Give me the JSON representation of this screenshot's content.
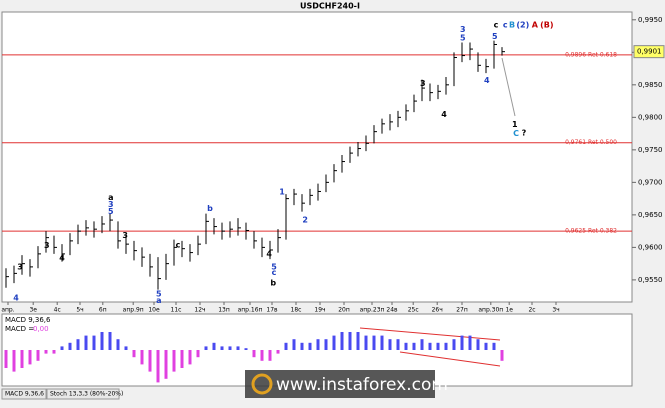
{
  "chart_data": [
    {
      "type": "ohlc",
      "title": "USDCHF240-I",
      "color": "#000000",
      "level_color": "#e03030",
      "xlim": [
        -0.5,
        78.25
      ],
      "ylim": [
        0.9516,
        0.9962
      ],
      "yticks": [
        {
          "value": 0.955,
          "label": "0,9550"
        },
        {
          "value": 0.96,
          "label": "0,9600"
        },
        {
          "value": 0.965,
          "label": "0,9650"
        },
        {
          "value": 0.97,
          "label": "0,9700"
        },
        {
          "value": 0.975,
          "label": "0,9750"
        },
        {
          "value": 0.98,
          "label": "0,9800"
        },
        {
          "value": 0.985,
          "label": "0,9850"
        },
        {
          "value": 0.99,
          "label": "0,9900"
        },
        {
          "value": 0.995,
          "label": "0,9950"
        }
      ],
      "xticks": [
        {
          "value": 0.25,
          "label": "апр."
        },
        {
          "value": 3.4,
          "label": "3е"
        },
        {
          "value": 6.4,
          "label": "4с"
        },
        {
          "value": 9.25,
          "label": "5ч"
        },
        {
          "value": 12.1,
          "label": "6п"
        },
        {
          "value": 15.9,
          "label": "апр.9п"
        },
        {
          "value": 18.5,
          "label": "10е"
        },
        {
          "value": 21.25,
          "label": "11с"
        },
        {
          "value": 24.25,
          "label": "12ч"
        },
        {
          "value": 27.25,
          "label": "13п"
        },
        {
          "value": 30.5,
          "label": "апр.16п"
        },
        {
          "value": 33.25,
          "label": "17в"
        },
        {
          "value": 36.25,
          "label": "18с"
        },
        {
          "value": 39.25,
          "label": "19ч"
        },
        {
          "value": 42.25,
          "label": "20п"
        },
        {
          "value": 45.75,
          "label": "апр.23п"
        },
        {
          "value": 48.25,
          "label": "24в"
        },
        {
          "value": 50.9,
          "label": "25с"
        },
        {
          "value": 53.9,
          "label": "26ч"
        },
        {
          "value": 57,
          "label": "27п"
        },
        {
          "value": 60.6,
          "label": "апр.30п"
        },
        {
          "value": 62.9,
          "label": "1е"
        },
        {
          "value": 65.75,
          "label": "2с"
        },
        {
          "value": 68.75,
          "label": "3ч"
        }
      ],
      "high": [
        0.9568,
        0.9572,
        0.9588,
        0.9582,
        0.9602,
        0.9625,
        0.9618,
        0.9605,
        0.9622,
        0.9635,
        0.9642,
        0.964,
        0.9648,
        0.9652,
        0.964,
        0.9618,
        0.961,
        0.96,
        0.959,
        0.9585,
        0.959,
        0.9612,
        0.961,
        0.9605,
        0.9618,
        0.9652,
        0.9645,
        0.9638,
        0.964,
        0.9645,
        0.9638,
        0.9625,
        0.9615,
        0.961,
        0.9628,
        0.9682,
        0.969,
        0.9682,
        0.969,
        0.9698,
        0.9712,
        0.9728,
        0.9742,
        0.9755,
        0.9762,
        0.9772,
        0.9788,
        0.9798,
        0.9805,
        0.981,
        0.982,
        0.9835,
        0.9858,
        0.9852,
        0.985,
        0.9862,
        0.99,
        0.9915,
        0.9915,
        0.99,
        0.989,
        0.9918,
        0.9908
      ],
      "low": [
        0.9538,
        0.9545,
        0.9558,
        0.9555,
        0.9568,
        0.9592,
        0.959,
        0.9578,
        0.9588,
        0.9605,
        0.9618,
        0.9615,
        0.9622,
        0.9625,
        0.9598,
        0.959,
        0.958,
        0.957,
        0.9555,
        0.9535,
        0.955,
        0.9572,
        0.9585,
        0.9578,
        0.9588,
        0.9605,
        0.962,
        0.9612,
        0.9615,
        0.9618,
        0.9612,
        0.9598,
        0.9585,
        0.9582,
        0.9592,
        0.9612,
        0.9665,
        0.9655,
        0.9665,
        0.9672,
        0.9685,
        0.97,
        0.9715,
        0.973,
        0.974,
        0.9748,
        0.976,
        0.9775,
        0.978,
        0.9785,
        0.9795,
        0.9808,
        0.9825,
        0.9825,
        0.9828,
        0.9835,
        0.9848,
        0.9885,
        0.9888,
        0.987,
        0.9868,
        0.9875,
        0.9895
      ],
      "close": [
        0.9555,
        0.956,
        0.9575,
        0.957,
        0.959,
        0.9615,
        0.96,
        0.959,
        0.961,
        0.9625,
        0.963,
        0.9628,
        0.9636,
        0.9642,
        0.961,
        0.9605,
        0.9595,
        0.9585,
        0.957,
        0.9552,
        0.9575,
        0.96,
        0.9598,
        0.9592,
        0.9605,
        0.964,
        0.9632,
        0.9625,
        0.9628,
        0.963,
        0.9626,
        0.961,
        0.96,
        0.9596,
        0.9615,
        0.9675,
        0.9682,
        0.9668,
        0.968,
        0.9686,
        0.97,
        0.9718,
        0.9732,
        0.9745,
        0.9752,
        0.976,
        0.9778,
        0.979,
        0.9793,
        0.98,
        0.981,
        0.9825,
        0.9845,
        0.9838,
        0.984,
        0.985,
        0.9892,
        0.9895,
        0.9905,
        0.988,
        0.9878,
        0.9912,
        0.9901
      ],
      "levels": [
        {
          "value": 0.9896,
          "label": "0,9896 Ret 0.618"
        },
        {
          "value": 0.9761,
          "label": "0,9761 Ret 0.500"
        },
        {
          "value": 0.9625,
          "label": "0,9625 Ret 0.382"
        }
      ],
      "last_price": {
        "value": 0.9901,
        "label": "0,9901"
      },
      "annotations": [
        {
          "text": "3",
          "x": 1.75,
          "y": 0.957,
          "color": "#000000"
        },
        {
          "text": "4",
          "x": 1.25,
          "y": 0.9522,
          "color": "#2040c0"
        },
        {
          "text": "3",
          "x": 5.1,
          "y": 0.9603,
          "color": "#000000"
        },
        {
          "text": "4",
          "x": 7,
          "y": 0.9584,
          "color": "#000000"
        },
        {
          "text": "a",
          "x": 13.1,
          "y": 0.9677,
          "color": "#000000"
        },
        {
          "text": "3",
          "x": 13.1,
          "y": 0.9666,
          "color": "#2040c0"
        },
        {
          "text": "5",
          "x": 13.1,
          "y": 0.9655,
          "color": "#2040c0"
        },
        {
          "text": "3",
          "x": 14.9,
          "y": 0.9618,
          "color": "#000000"
        },
        {
          "text": "5",
          "x": 19.1,
          "y": 0.9528,
          "color": "#2040c0"
        },
        {
          "text": "a",
          "x": 19.1,
          "y": 0.9518,
          "color": "#2040c0"
        },
        {
          "text": "c",
          "x": 21.5,
          "y": 0.9604,
          "color": "#000000"
        },
        {
          "text": "b",
          "x": 25.5,
          "y": 0.966,
          "color": "#2040c0"
        },
        {
          "text": "4",
          "x": 32.9,
          "y": 0.959,
          "color": "#000000"
        },
        {
          "text": "5",
          "x": 33.5,
          "y": 0.957,
          "color": "#2040c0"
        },
        {
          "text": "c",
          "x": 33.5,
          "y": 0.9561,
          "color": "#2040c0"
        },
        {
          "text": "b",
          "x": 33.4,
          "y": 0.9545,
          "color": "#000000"
        },
        {
          "text": "1",
          "x": 34.5,
          "y": 0.9685,
          "color": "#2040c0"
        },
        {
          "text": "2",
          "x": 37.4,
          "y": 0.9642,
          "color": "#2040c0"
        },
        {
          "text": "3",
          "x": 52.1,
          "y": 0.9852,
          "color": "#000000"
        },
        {
          "text": "4",
          "x": 54.75,
          "y": 0.9804,
          "color": "#000000"
        },
        {
          "text": "3",
          "x": 57.1,
          "y": 0.9935,
          "color": "#2040c0"
        },
        {
          "text": "5",
          "x": 57.1,
          "y": 0.9922,
          "color": "#2040c0"
        },
        {
          "text": "4",
          "x": 60.1,
          "y": 0.9857,
          "color": "#2040c0"
        },
        {
          "text": "5",
          "x": 61.1,
          "y": 0.9924,
          "color": "#2040c0"
        },
        {
          "text": "c",
          "x": 61.25,
          "y": 0.9942,
          "color": "#000000"
        },
        {
          "text": "c",
          "x": 62.4,
          "y": 0.9942,
          "color": "#2040c0"
        },
        {
          "text": "B",
          "x": 63.25,
          "y": 0.9942,
          "color": "#2090d0"
        },
        {
          "text": "(2)",
          "x": 64.6,
          "y": 0.9942,
          "color": "#2040c0"
        },
        {
          "text": "A",
          "x": 66.1,
          "y": 0.9942,
          "color": "#c00000"
        },
        {
          "text": "(B)",
          "x": 67.6,
          "y": 0.9942,
          "color": "#c00000"
        },
        {
          "text": "1",
          "x": 63.6,
          "y": 0.9789,
          "color": "#000000"
        },
        {
          "text": "C",
          "x": 63.75,
          "y": 0.9775,
          "color": "#2090d0"
        },
        {
          "text": "?",
          "x": 64.75,
          "y": 0.9776,
          "color": "#000000"
        }
      ]
    },
    {
      "type": "bar",
      "title": "MACD 9,36,6",
      "readout": "MACD =",
      "readout_value": {
        "value": 0,
        "label": "0,00"
      },
      "colors": {
        "positive": "#4a4af0",
        "negative": "#e040e0"
      },
      "ylim": [
        -0.001,
        0.001
      ],
      "values": [
        -0.0005,
        -0.0006,
        -0.0005,
        -0.0004,
        -0.0003,
        -0.0001,
        -0.0001,
        0.0001,
        0.0002,
        0.0003,
        0.0004,
        0.0004,
        0.0005,
        0.0005,
        0.0003,
        0.0001,
        -0.0002,
        -0.0004,
        -0.0006,
        -0.0009,
        -0.0008,
        -0.0006,
        -0.0005,
        -0.0004,
        -0.0002,
        0.0001,
        0.0002,
        0.0001,
        0.0001,
        0.0001,
        5e-05,
        -0.0002,
        -0.0003,
        -0.0003,
        -0.0001,
        0.0002,
        0.0003,
        0.0002,
        0.0002,
        0.0003,
        0.0003,
        0.0004,
        0.0005,
        0.0005,
        0.0005,
        0.0004,
        0.0004,
        0.0004,
        0.0003,
        0.0003,
        0.0002,
        0.0002,
        0.0003,
        0.0002,
        0.0002,
        0.0002,
        0.0003,
        0.0004,
        0.0004,
        0.0003,
        0.0002,
        0.0002,
        -0.0003
      ]
    }
  ],
  "tabs": [
    "MACD 9,36,6",
    "Stoch 13,3,3 (80%-20%)"
  ],
  "watermark": "www.instaforex.com"
}
